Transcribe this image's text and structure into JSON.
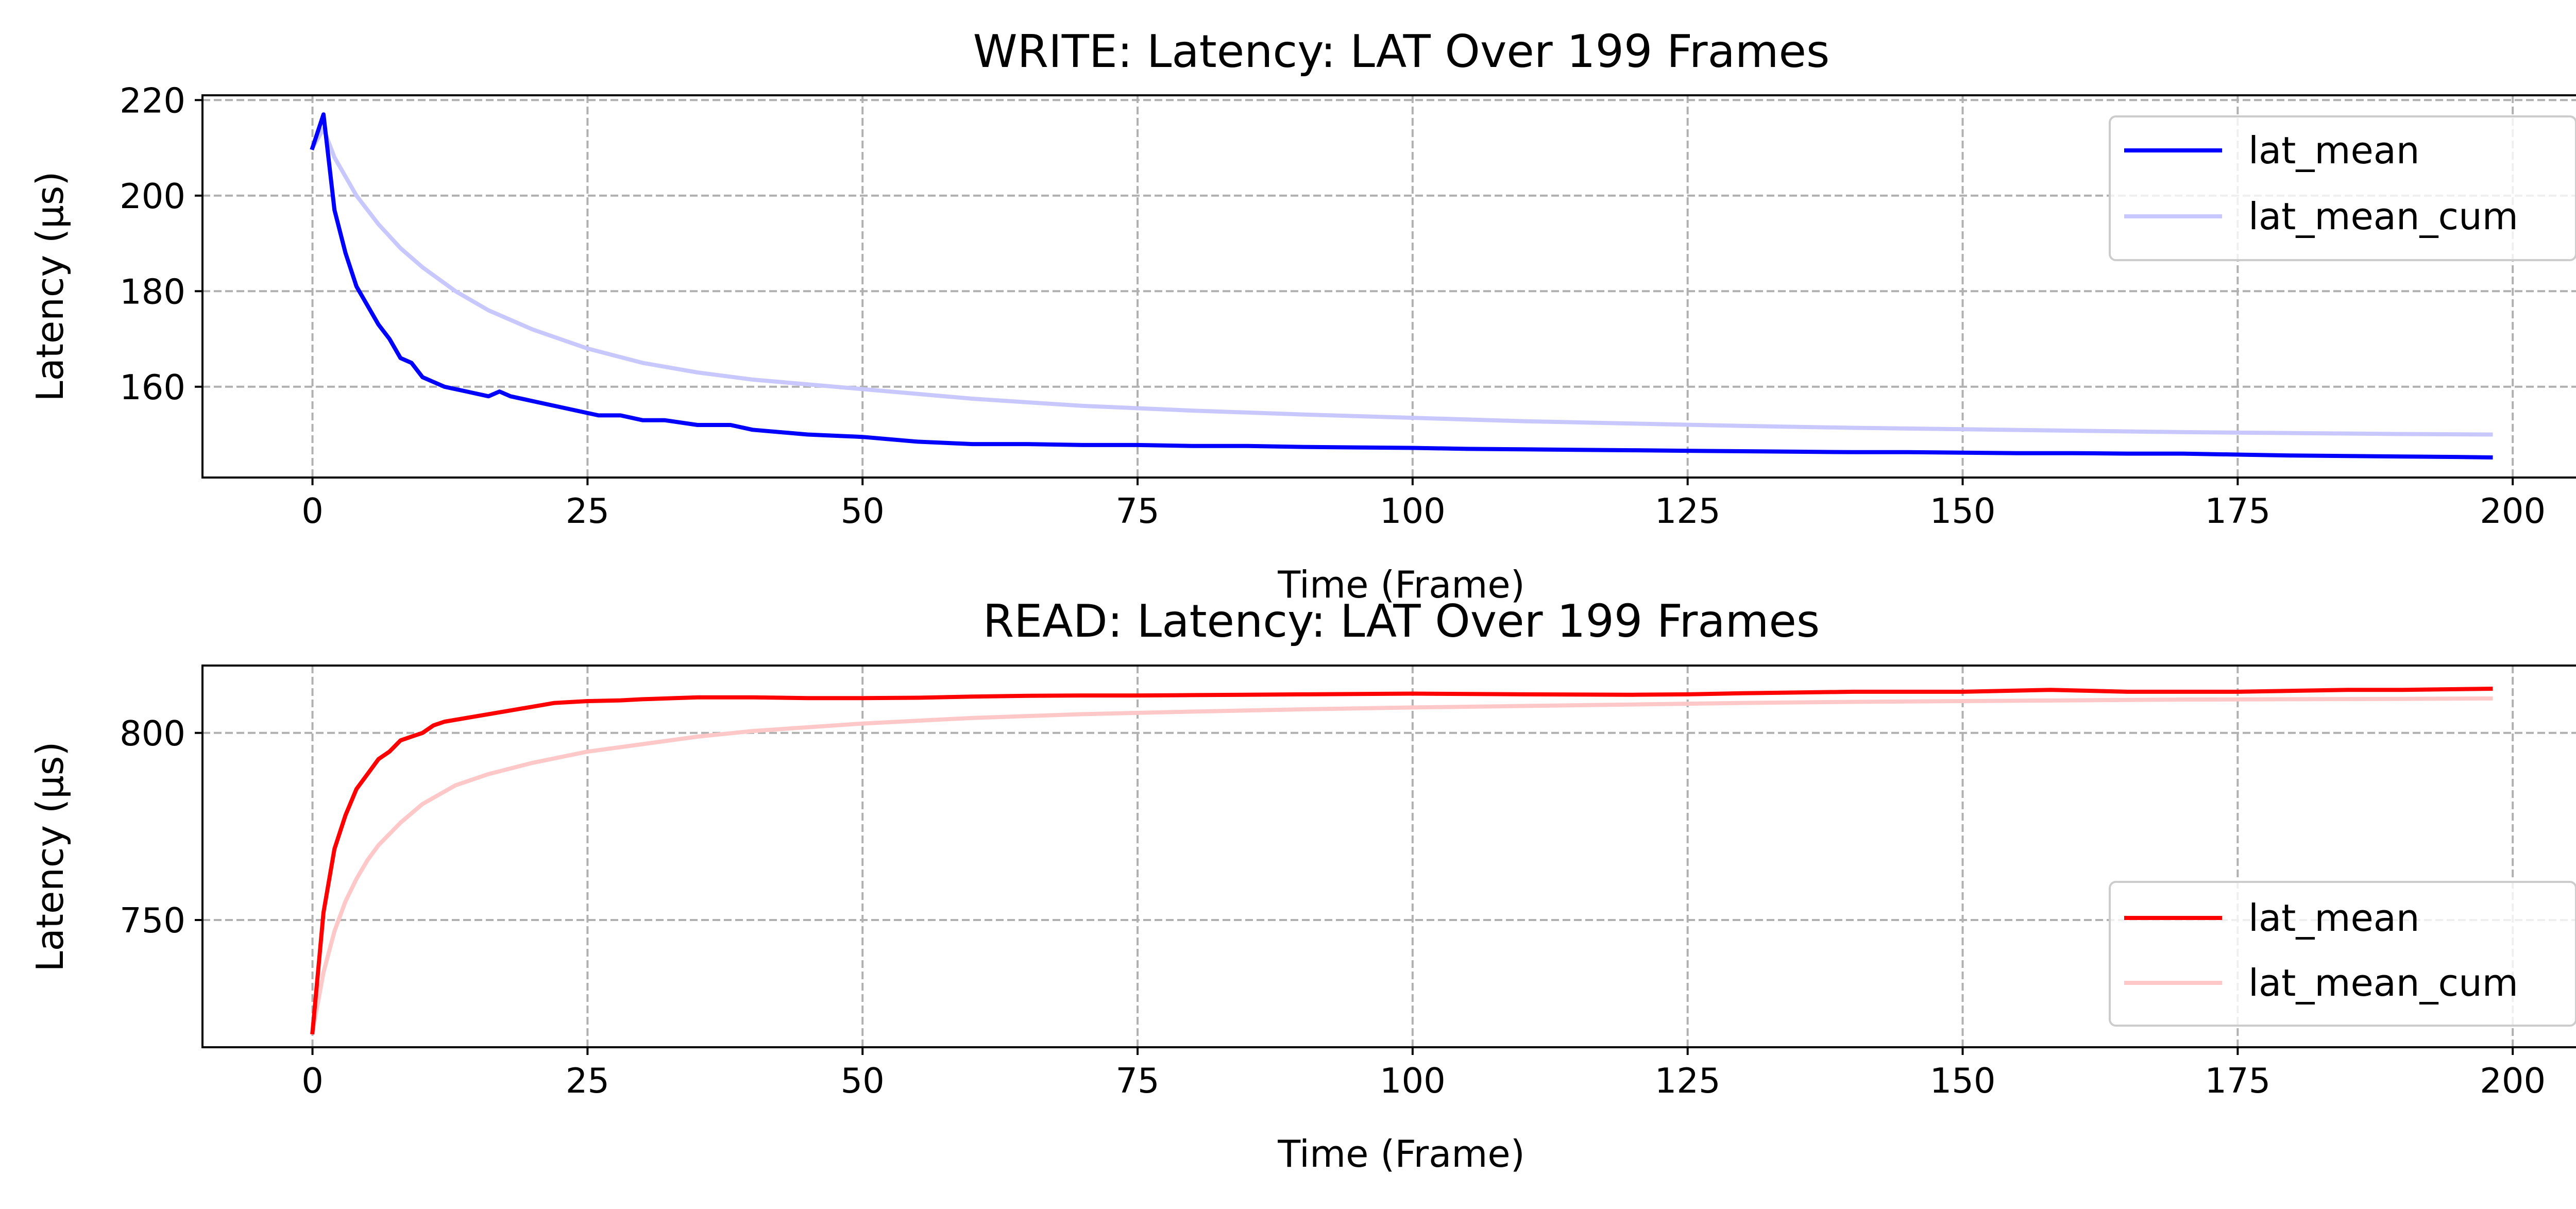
{
  "colors": {
    "write_mean": "#0000ff",
    "write_cum": "#c8c8ff",
    "read_mean": "#ff0000",
    "read_cum": "#ffc8c8",
    "grid": "#b0b0b0"
  },
  "chart_data": [
    {
      "type": "line",
      "title": "WRITE: Latency: LAT Over 199 Frames",
      "xlabel": "Time (Frame)",
      "ylabel": "Latency (µs)",
      "xlim": [
        -10,
        208
      ],
      "ylim": [
        141,
        221
      ],
      "xticks": [
        0,
        25,
        50,
        75,
        100,
        125,
        150,
        175,
        200
      ],
      "yticks": [
        160,
        180,
        200,
        220
      ],
      "grid": true,
      "legend_position": "upper-right",
      "series": [
        {
          "name": "lat_mean",
          "color": "#0000ff",
          "points": [
            [
              0,
              210
            ],
            [
              1,
              217
            ],
            [
              2,
              197
            ],
            [
              3,
              188
            ],
            [
              4,
              181
            ],
            [
              5,
              177
            ],
            [
              6,
              173
            ],
            [
              7,
              170
            ],
            [
              8,
              166
            ],
            [
              9,
              165
            ],
            [
              10,
              162
            ],
            [
              11,
              161
            ],
            [
              12,
              160
            ],
            [
              14,
              159
            ],
            [
              16,
              158
            ],
            [
              17,
              159
            ],
            [
              18,
              158
            ],
            [
              20,
              157
            ],
            [
              22,
              156
            ],
            [
              24,
              155
            ],
            [
              26,
              154
            ],
            [
              27,
              154
            ],
            [
              28,
              154
            ],
            [
              30,
              153
            ],
            [
              32,
              153
            ],
            [
              35,
              152
            ],
            [
              38,
              152
            ],
            [
              40,
              151
            ],
            [
              45,
              150
            ],
            [
              50,
              149.5
            ],
            [
              55,
              148.5
            ],
            [
              60,
              148
            ],
            [
              65,
              148
            ],
            [
              70,
              147.8
            ],
            [
              75,
              147.8
            ],
            [
              80,
              147.6
            ],
            [
              85,
              147.6
            ],
            [
              90,
              147.4
            ],
            [
              95,
              147.3
            ],
            [
              100,
              147.2
            ],
            [
              105,
              147
            ],
            [
              110,
              146.9
            ],
            [
              115,
              146.8
            ],
            [
              120,
              146.7
            ],
            [
              125,
              146.6
            ],
            [
              130,
              146.5
            ],
            [
              135,
              146.4
            ],
            [
              140,
              146.3
            ],
            [
              145,
              146.3
            ],
            [
              150,
              146.2
            ],
            [
              155,
              146.1
            ],
            [
              160,
              146.1
            ],
            [
              165,
              146
            ],
            [
              170,
              146
            ],
            [
              175,
              145.8
            ],
            [
              180,
              145.6
            ],
            [
              185,
              145.5
            ],
            [
              190,
              145.4
            ],
            [
              195,
              145.3
            ],
            [
              198,
              145.2
            ]
          ]
        },
        {
          "name": "lat_mean_cum",
          "color": "#c8c8ff",
          "points": [
            [
              0,
              210
            ],
            [
              1,
              214
            ],
            [
              2,
              208
            ],
            [
              4,
              200
            ],
            [
              6,
              194
            ],
            [
              8,
              189
            ],
            [
              10,
              185
            ],
            [
              13,
              180
            ],
            [
              16,
              176
            ],
            [
              20,
              172
            ],
            [
              25,
              168
            ],
            [
              30,
              165
            ],
            [
              35,
              163
            ],
            [
              40,
              161.5
            ],
            [
              45,
              160.5
            ],
            [
              50,
              159.5
            ],
            [
              60,
              157.5
            ],
            [
              70,
              156
            ],
            [
              80,
              155
            ],
            [
              90,
              154.2
            ],
            [
              100,
              153.5
            ],
            [
              110,
              152.8
            ],
            [
              120,
              152.3
            ],
            [
              130,
              151.8
            ],
            [
              140,
              151.4
            ],
            [
              150,
              151.1
            ],
            [
              160,
              150.8
            ],
            [
              170,
              150.5
            ],
            [
              180,
              150.3
            ],
            [
              190,
              150.1
            ],
            [
              198,
              150
            ]
          ]
        }
      ]
    },
    {
      "type": "line",
      "title": "READ: Latency: LAT Over 199 Frames",
      "xlabel": "Time (Frame)",
      "ylabel": "Latency (µs)",
      "xlim": [
        -10,
        208
      ],
      "ylim": [
        716,
        818
      ],
      "xticks": [
        0,
        25,
        50,
        75,
        100,
        125,
        150,
        175,
        200
      ],
      "yticks": [
        750,
        800
      ],
      "grid": true,
      "legend_position": "lower-right",
      "series": [
        {
          "name": "lat_mean",
          "color": "#ff0000",
          "points": [
            [
              0,
              720
            ],
            [
              1,
              752
            ],
            [
              2,
              769
            ],
            [
              3,
              778
            ],
            [
              4,
              785
            ],
            [
              5,
              789
            ],
            [
              6,
              793
            ],
            [
              7,
              795
            ],
            [
              8,
              798
            ],
            [
              9,
              799
            ],
            [
              10,
              800
            ],
            [
              11,
              802
            ],
            [
              12,
              803
            ],
            [
              14,
              804
            ],
            [
              16,
              805
            ],
            [
              18,
              806
            ],
            [
              20,
              807
            ],
            [
              22,
              808
            ],
            [
              25,
              808.5
            ],
            [
              28,
              808.7
            ],
            [
              30,
              809
            ],
            [
              35,
              809.5
            ],
            [
              40,
              809.5
            ],
            [
              45,
              809.3
            ],
            [
              50,
              809.3
            ],
            [
              55,
              809.4
            ],
            [
              60,
              809.7
            ],
            [
              65,
              809.9
            ],
            [
              70,
              810
            ],
            [
              75,
              810
            ],
            [
              80,
              810.1
            ],
            [
              90,
              810.3
            ],
            [
              100,
              810.5
            ],
            [
              110,
              810.3
            ],
            [
              120,
              810.2
            ],
            [
              125,
              810.3
            ],
            [
              130,
              810.6
            ],
            [
              140,
              811
            ],
            [
              150,
              811
            ],
            [
              158,
              811.5
            ],
            [
              165,
              811
            ],
            [
              175,
              811
            ],
            [
              185,
              811.5
            ],
            [
              190,
              811.5
            ],
            [
              198,
              811.8
            ]
          ]
        },
        {
          "name": "lat_mean_cum",
          "color": "#ffc8c8",
          "points": [
            [
              0,
              720
            ],
            [
              1,
              736
            ],
            [
              2,
              747
            ],
            [
              3,
              755
            ],
            [
              4,
              761
            ],
            [
              5,
              766
            ],
            [
              6,
              770
            ],
            [
              8,
              776
            ],
            [
              10,
              781
            ],
            [
              13,
              786
            ],
            [
              16,
              789
            ],
            [
              20,
              792
            ],
            [
              25,
              795
            ],
            [
              30,
              797
            ],
            [
              35,
              799
            ],
            [
              40,
              800.5
            ],
            [
              50,
              802.5
            ],
            [
              60,
              804
            ],
            [
              70,
              805
            ],
            [
              80,
              805.7
            ],
            [
              90,
              806.3
            ],
            [
              100,
              806.8
            ],
            [
              110,
              807.2
            ],
            [
              120,
              807.6
            ],
            [
              130,
              808
            ],
            [
              140,
              808.3
            ],
            [
              150,
              808.5
            ],
            [
              160,
              808.7
            ],
            [
              170,
              808.9
            ],
            [
              180,
              809
            ],
            [
              190,
              809.1
            ],
            [
              198,
              809.2
            ]
          ]
        }
      ]
    }
  ]
}
